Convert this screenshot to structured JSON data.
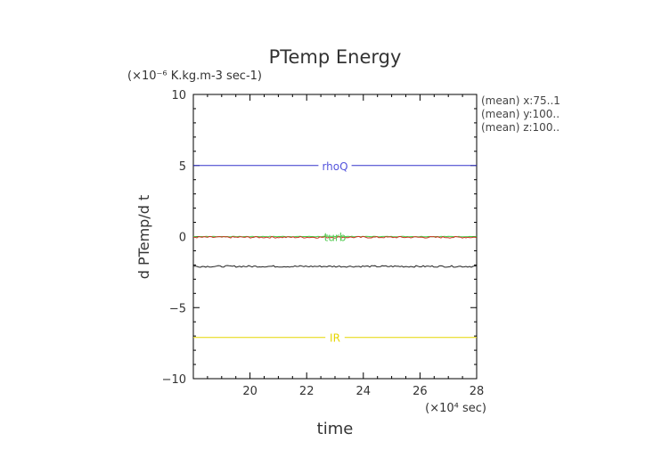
{
  "chart_data": {
    "type": "line",
    "title": "PTemp Energy",
    "subtitle": "(×10⁻⁶ K.kg.m-3 sec-1)",
    "xlabel": "time",
    "ylabel": "d PTemp/d t",
    "x_unit": "(×10⁴ sec)",
    "xlim": [
      18,
      28
    ],
    "ylim": [
      -10,
      10
    ],
    "xticks": [
      20,
      22,
      24,
      26,
      28
    ],
    "yticks": [
      10,
      5,
      0,
      -5,
      -10
    ],
    "ytick_labels": [
      "10",
      "5",
      "0",
      "−5",
      "−10"
    ],
    "grid": false,
    "annotations": [
      "(mean) x:75..1",
      "(mean) y:100..",
      "(mean) z:100.."
    ],
    "series": [
      {
        "name": "rhoQ",
        "color": "#3333cc",
        "label_color": "#5555dd",
        "x": [
          18,
          28
        ],
        "y": [
          5.0,
          5.0
        ],
        "noise": 0.0
      },
      {
        "name": "turb",
        "color": "#44cc44",
        "label_color": "#55cc55",
        "x": [
          18,
          28
        ],
        "y": [
          0.0,
          0.0
        ],
        "noise": 0.02
      },
      {
        "name": "",
        "color": "#cc3322",
        "x": [
          18,
          28
        ],
        "y": [
          -0.05,
          -0.05
        ],
        "noise": 0.06
      },
      {
        "name": "",
        "color": "#222222",
        "x": [
          18,
          28
        ],
        "y": [
          -2.1,
          -2.1
        ],
        "noise": 0.06
      },
      {
        "name": "IR",
        "color": "#e6d600",
        "label_color": "#e6d600",
        "x": [
          18,
          28
        ],
        "y": [
          -7.1,
          -7.1
        ],
        "noise": 0.0
      }
    ]
  }
}
